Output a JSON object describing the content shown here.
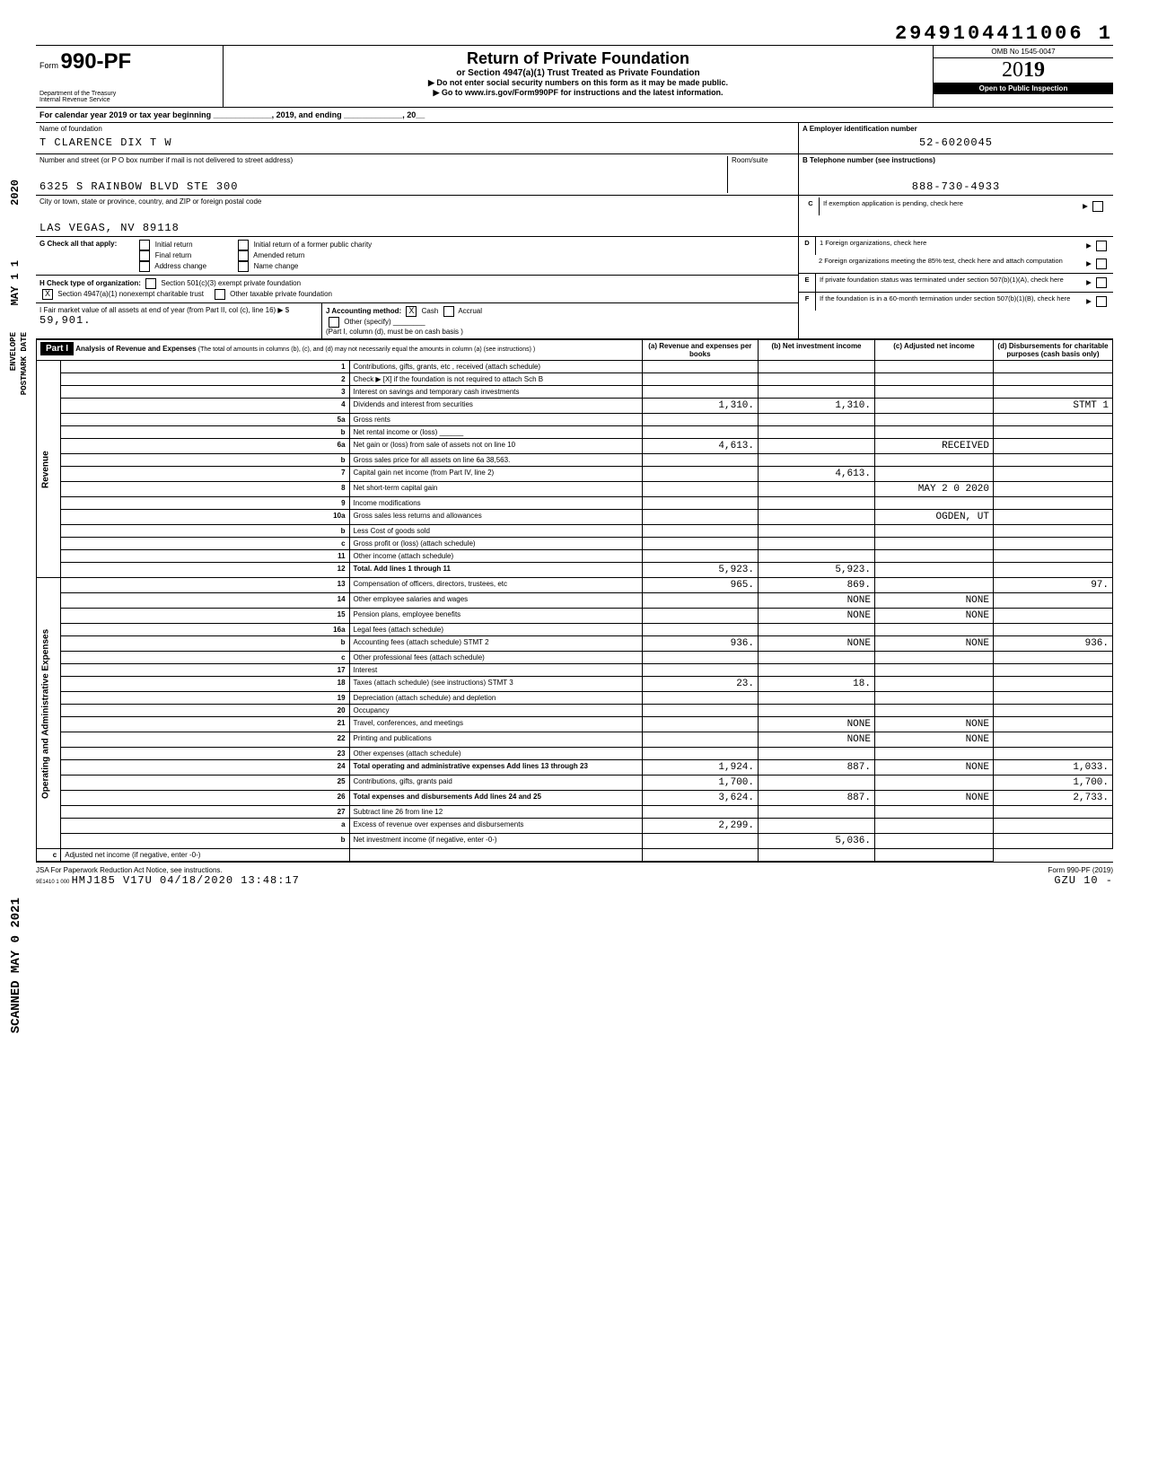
{
  "top_number": "2949104411006 1",
  "form": {
    "prefix": "Form",
    "number": "990-PF",
    "dept": "Department of the Treasury",
    "irs": "Internal Revenue Service"
  },
  "header": {
    "title": "Return of Private Foundation",
    "subtitle": "or Section 4947(a)(1) Trust Treated as Private Foundation",
    "line1": "▶ Do not enter social security numbers on this form as it may be made public.",
    "line2": "▶ Go to www.irs.gov/Form990PF for instructions and the latest information.",
    "omb": "OMB No 1545-0047",
    "year_prefix": "20",
    "year_suffix": "19",
    "inspect": "Open to Public Inspection"
  },
  "cal_year": "For calendar year 2019 or tax year beginning _____________, 2019, and ending _____________, 20__",
  "labels": {
    "name_of_foundation": "Name of foundation",
    "ein_label": "A  Employer identification number",
    "street_label": "Number and street (or P O box number if mail is not delivered to street address)",
    "room": "Room/suite",
    "phone_label": "B  Telephone number (see instructions)",
    "city_label": "City or town, state or province, country, and ZIP or foreign postal code"
  },
  "values": {
    "foundation_name": "T CLARENCE DIX T W",
    "ein": "52-6020045",
    "street": "6325 S RAINBOW BLVD STE 300",
    "phone": "888-730-4933",
    "city": "LAS VEGAS, NV 89118"
  },
  "section_c": {
    "letter": "C",
    "text": "If exemption application is pending, check here"
  },
  "section_d": {
    "letter": "D",
    "d1": "1 Foreign organizations, check here",
    "d2": "2 Foreign organizations meeting the 85% test, check here and attach computation"
  },
  "section_e": {
    "letter": "E",
    "text": "If private foundation status was terminated under section 507(b)(1)(A), check here"
  },
  "section_f": {
    "letter": "F",
    "text": "If the foundation is in a 60-month termination under section 507(b)(1)(B), check here"
  },
  "g": {
    "label": "G Check all that apply:",
    "opts": [
      "Initial return",
      "Final return",
      "Address change",
      "Initial return of a former public charity",
      "Amended return",
      "Name change"
    ]
  },
  "h": {
    "label": "H Check type of organization:",
    "opt1": "Section 501(c)(3) exempt private foundation",
    "opt2": "Section 4947(a)(1) nonexempt charitable trust",
    "opt3": "Other taxable private foundation"
  },
  "i": {
    "label": "I  Fair market value of all assets at end of year (from Part II, col (c), line 16) ▶ $",
    "value": "59,901."
  },
  "j": {
    "label": "J Accounting method:",
    "cash": "Cash",
    "accrual": "Accrual",
    "other": "Other (specify)",
    "note": "(Part I, column (d), must be on cash basis )"
  },
  "part1": {
    "header": "Part I",
    "title": "Analysis of Revenue and Expenses",
    "note": "(The total of amounts in columns (b), (c), and (d) may not necessarily equal the amounts in column (a) (see instructions) )",
    "cols": {
      "a": "(a) Revenue and expenses per books",
      "b": "(b) Net investment income",
      "c": "(c) Adjusted net income",
      "d": "(d) Disbursements for charitable purposes (cash basis only)"
    }
  },
  "side_labels": {
    "revenue": "Revenue",
    "expenses": "Operating and Administrative Expenses"
  },
  "rows": [
    {
      "n": "1",
      "desc": "Contributions, gifts, grants, etc , received (attach schedule)",
      "a": "",
      "b": "",
      "c": "",
      "d": ""
    },
    {
      "n": "2",
      "desc": "Check ▶ [X] if the foundation is not required to attach Sch B",
      "a": "",
      "b": "",
      "c": "",
      "d": ""
    },
    {
      "n": "3",
      "desc": "Interest on savings and temporary cash investments",
      "a": "",
      "b": "",
      "c": "",
      "d": ""
    },
    {
      "n": "4",
      "desc": "Dividends and interest from securities",
      "a": "1,310.",
      "b": "1,310.",
      "c": "",
      "d": "STMT 1"
    },
    {
      "n": "5a",
      "desc": "Gross rents",
      "a": "",
      "b": "",
      "c": "",
      "d": ""
    },
    {
      "n": "b",
      "desc": "Net rental income or (loss) ______",
      "a": "",
      "b": "",
      "c": "",
      "d": ""
    },
    {
      "n": "6a",
      "desc": "Net gain or (loss) from sale of assets not on line 10",
      "a": "4,613.",
      "b": "",
      "c": "RECEIVED",
      "d": ""
    },
    {
      "n": "b",
      "desc": "Gross sales price for all assets on line 6a        38,563.",
      "a": "",
      "b": "",
      "c": "",
      "d": ""
    },
    {
      "n": "7",
      "desc": "Capital gain net income (from Part IV, line 2)",
      "a": "",
      "b": "4,613.",
      "c": "",
      "d": ""
    },
    {
      "n": "8",
      "desc": "Net short-term capital gain",
      "a": "",
      "b": "",
      "c": "MAY 2 0 2020",
      "d": ""
    },
    {
      "n": "9",
      "desc": "Income modifications",
      "a": "",
      "b": "",
      "c": "",
      "d": ""
    },
    {
      "n": "10a",
      "desc": "Gross sales less returns and allowances",
      "a": "",
      "b": "",
      "c": "OGDEN, UT",
      "d": ""
    },
    {
      "n": "b",
      "desc": "Less Cost of goods sold",
      "a": "",
      "b": "",
      "c": "",
      "d": ""
    },
    {
      "n": "c",
      "desc": "Gross profit or (loss) (attach schedule)",
      "a": "",
      "b": "",
      "c": "",
      "d": ""
    },
    {
      "n": "11",
      "desc": "Other income (attach schedule)",
      "a": "",
      "b": "",
      "c": "",
      "d": ""
    },
    {
      "n": "12",
      "desc": "Total. Add lines 1 through 11",
      "a": "5,923.",
      "b": "5,923.",
      "c": "",
      "d": ""
    },
    {
      "n": "13",
      "desc": "Compensation of officers, directors, trustees, etc",
      "a": "965.",
      "b": "869.",
      "c": "",
      "d": "97."
    },
    {
      "n": "14",
      "desc": "Other employee salaries and wages",
      "a": "",
      "b": "NONE",
      "c": "NONE",
      "d": ""
    },
    {
      "n": "15",
      "desc": "Pension plans, employee benefits",
      "a": "",
      "b": "NONE",
      "c": "NONE",
      "d": ""
    },
    {
      "n": "16a",
      "desc": "Legal fees (attach schedule)",
      "a": "",
      "b": "",
      "c": "",
      "d": ""
    },
    {
      "n": "b",
      "desc": "Accounting fees (attach schedule) STMT 2",
      "a": "936.",
      "b": "NONE",
      "c": "NONE",
      "d": "936."
    },
    {
      "n": "c",
      "desc": "Other professional fees (attach schedule)",
      "a": "",
      "b": "",
      "c": "",
      "d": ""
    },
    {
      "n": "17",
      "desc": "Interest",
      "a": "",
      "b": "",
      "c": "",
      "d": ""
    },
    {
      "n": "18",
      "desc": "Taxes (attach schedule) (see instructions) STMT 3",
      "a": "23.",
      "b": "18.",
      "c": "",
      "d": ""
    },
    {
      "n": "19",
      "desc": "Depreciation (attach schedule) and depletion",
      "a": "",
      "b": "",
      "c": "",
      "d": ""
    },
    {
      "n": "20",
      "desc": "Occupancy",
      "a": "",
      "b": "",
      "c": "",
      "d": ""
    },
    {
      "n": "21",
      "desc": "Travel, conferences, and meetings",
      "a": "",
      "b": "NONE",
      "c": "NONE",
      "d": ""
    },
    {
      "n": "22",
      "desc": "Printing and publications",
      "a": "",
      "b": "NONE",
      "c": "NONE",
      "d": ""
    },
    {
      "n": "23",
      "desc": "Other expenses (attach schedule)",
      "a": "",
      "b": "",
      "c": "",
      "d": ""
    },
    {
      "n": "24",
      "desc": "Total operating and administrative expenses Add lines 13 through 23",
      "a": "1,924.",
      "b": "887.",
      "c": "NONE",
      "d": "1,033."
    },
    {
      "n": "25",
      "desc": "Contributions, gifts, grants paid",
      "a": "1,700.",
      "b": "",
      "c": "",
      "d": "1,700."
    },
    {
      "n": "26",
      "desc": "Total expenses and disbursements Add lines 24 and 25",
      "a": "3,624.",
      "b": "887.",
      "c": "NONE",
      "d": "2,733."
    },
    {
      "n": "27",
      "desc": "Subtract line 26 from line 12",
      "a": "",
      "b": "",
      "c": "",
      "d": ""
    },
    {
      "n": "a",
      "desc": "Excess of revenue over expenses and disbursements",
      "a": "2,299.",
      "b": "",
      "c": "",
      "d": ""
    },
    {
      "n": "b",
      "desc": "Net investment income (if negative, enter -0-)",
      "a": "",
      "b": "5,036.",
      "c": "",
      "d": ""
    },
    {
      "n": "c",
      "desc": "Adjusted net income (if negative, enter -0-)",
      "a": "",
      "b": "",
      "c": "",
      "d": ""
    }
  ],
  "footer": {
    "left": "JSA For Paperwork Reduction Act Notice, see instructions.",
    "jsa": "9E1410 1 000",
    "stamp": "HMJ185 V17U 04/18/2020 13:48:17",
    "right_form": "Form 990-PF (2019)",
    "right_code": "GZU  10   -"
  },
  "margin_stamps": {
    "year2020": "2020",
    "may11": "MAY 1 1",
    "envelope": "ENVELOPE",
    "postmark": "POSTMARK DATE",
    "scanned": "SCANNED MAY 0   2021"
  }
}
